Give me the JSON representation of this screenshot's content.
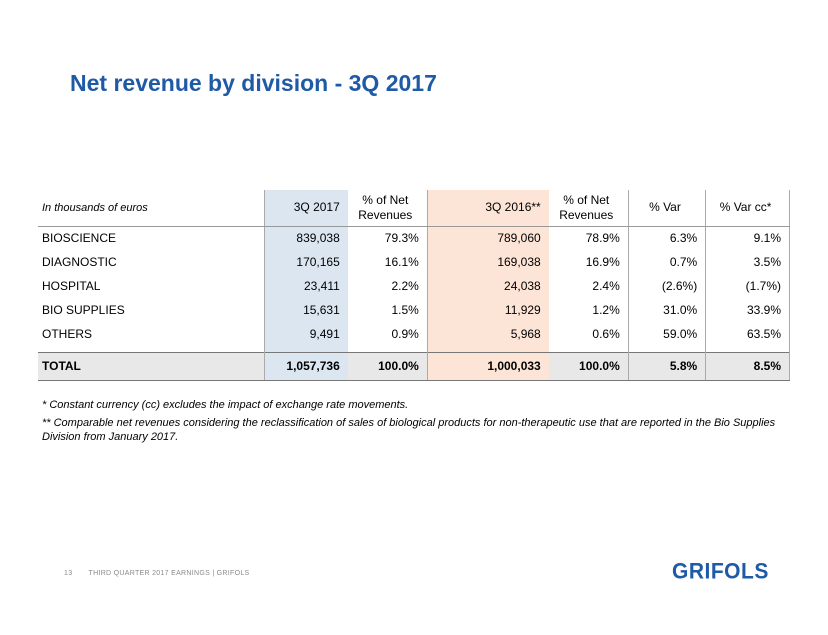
{
  "title": "Net revenue by division - 3Q 2017",
  "table": {
    "unit_label": "In thousands of euros",
    "headers": {
      "col1": "3Q 2017",
      "col2_line1": "% of Net",
      "col2_line2": "Revenues",
      "col3": "3Q 2016**",
      "col4_line1": "% of Net",
      "col4_line2": "Revenues",
      "col5": "% Var",
      "col6": "% Var cc*"
    },
    "rows": [
      {
        "division": "BIOSCIENCE",
        "q3_2017": "839,038",
        "pct_2017": "79.3%",
        "q3_2016": "789,060",
        "pct_2016": "78.9%",
        "var": "6.3%",
        "var_cc": "9.1%"
      },
      {
        "division": "DIAGNOSTIC",
        "q3_2017": "170,165",
        "pct_2017": "16.1%",
        "q3_2016": "169,038",
        "pct_2016": "16.9%",
        "var": "0.7%",
        "var_cc": "3.5%"
      },
      {
        "division": "HOSPITAL",
        "q3_2017": "23,411",
        "pct_2017": "2.2%",
        "q3_2016": "24,038",
        "pct_2016": "2.4%",
        "var": "(2.6%)",
        "var_cc": "(1.7%)"
      },
      {
        "division": "BIO SUPPLIES",
        "q3_2017": "15,631",
        "pct_2017": "1.5%",
        "q3_2016": "11,929",
        "pct_2016": "1.2%",
        "var": "31.0%",
        "var_cc": "33.9%"
      },
      {
        "division": "OTHERS",
        "q3_2017": "9,491",
        "pct_2017": "0.9%",
        "q3_2016": "5,968",
        "pct_2016": "0.6%",
        "var": "59.0%",
        "var_cc": "63.5%"
      }
    ],
    "total": {
      "division": "TOTAL",
      "q3_2017": "1,057,736",
      "pct_2017": "100.0%",
      "q3_2016": "1,000,033",
      "pct_2016": "100.0%",
      "var": "5.8%",
      "var_cc": "8.5%"
    }
  },
  "notes": {
    "note1": "* Constant currency (cc) excludes the impact of exchange rate movements.",
    "note2": "** Comparable net revenues considering the reclassification of sales of biological products for non-therapeutic use that are reported in the Bio Supplies Division from January 2017."
  },
  "footer": {
    "page_number": "13",
    "text": "THIRD QUARTER 2017 EARNINGS | GRIFOLS"
  },
  "logo_text": "GRIFOLS"
}
